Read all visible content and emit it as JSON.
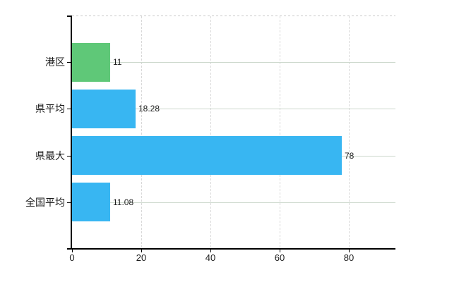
{
  "chart_data": {
    "type": "bar",
    "orientation": "horizontal",
    "title": "",
    "xlabel": "",
    "ylabel": "",
    "categories": [
      "港区",
      "県平均",
      "県最大",
      "全国平均"
    ],
    "values": [
      11,
      18.28,
      78,
      11.08
    ],
    "value_labels": [
      "11",
      "18.28",
      "78",
      "11.08"
    ],
    "bar_colors": [
      "#5fc878",
      "#38b6f2",
      "#38b6f2",
      "#38b6f2"
    ],
    "x_ticks": [
      0,
      20,
      40,
      60,
      80
    ],
    "x_tick_labels": [
      "0",
      "20",
      "40",
      "60",
      "80"
    ],
    "xlim": [
      0,
      93.6
    ],
    "grid": true,
    "legend_position": "none",
    "colors": {
      "bar_green": "#5fc878",
      "bar_blue": "#38b6f2",
      "axis": "#000000",
      "grid_horizontal": "#ccd8cc",
      "grid_vertical": "#d8d8d8",
      "plot_top_border": "#c9c9c9",
      "text": "#1c1c1c",
      "background": "#ffffff"
    }
  }
}
